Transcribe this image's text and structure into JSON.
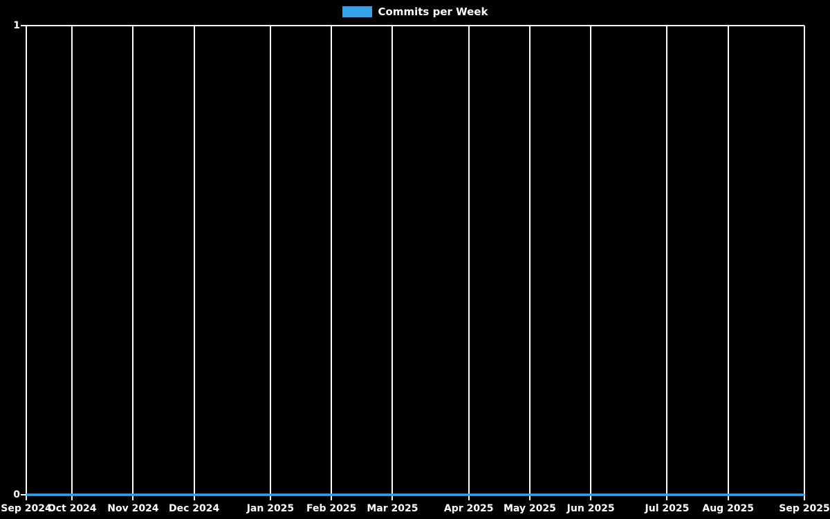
{
  "chart_data": {
    "type": "line",
    "title": "Commits per Week",
    "legend": {
      "position": "top",
      "items": [
        {
          "label": "Commits per Week",
          "color": "#36a2eb"
        }
      ]
    },
    "x_unit": "week",
    "x_range": [
      "Sep 2024",
      "Sep 2025"
    ],
    "n_points": 52,
    "values": [
      0,
      0,
      0,
      0,
      0,
      0,
      0,
      0,
      0,
      0,
      0,
      0,
      0,
      0,
      0,
      0,
      0,
      0,
      0,
      0,
      0,
      0,
      0,
      0,
      0,
      0,
      0,
      0,
      0,
      0,
      0,
      0,
      0,
      0,
      0,
      0,
      0,
      0,
      0,
      0,
      0,
      0,
      0,
      0,
      0,
      0,
      0,
      0,
      0,
      0,
      0,
      0
    ],
    "total_weeks": 51,
    "x_ticks": [
      {
        "label": "Sep 2024",
        "week": 0
      },
      {
        "label": "Oct 2024",
        "week": 3
      },
      {
        "label": "Nov 2024",
        "week": 7
      },
      {
        "label": "Dec 2024",
        "week": 11
      },
      {
        "label": "Jan 2025",
        "week": 16
      },
      {
        "label": "Feb 2025",
        "week": 20
      },
      {
        "label": "Mar 2025",
        "week": 24
      },
      {
        "label": "Apr 2025",
        "week": 29
      },
      {
        "label": "May 2025",
        "week": 33
      },
      {
        "label": "Jun 2025",
        "week": 37
      },
      {
        "label": "Jul 2025",
        "week": 42
      },
      {
        "label": "Aug 2025",
        "week": 46
      },
      {
        "label": "Sep 2025",
        "week": 51
      }
    ],
    "y_ticks": [
      {
        "label": "0",
        "value": 0
      },
      {
        "label": "1",
        "value": 1
      }
    ],
    "ylim": [
      0,
      1
    ],
    "xlabel": "",
    "ylabel": "",
    "grid": {
      "vertical": true,
      "horizontal": false
    },
    "colors": {
      "line": "#36a2eb",
      "grid": "#ffffff",
      "text": "#ffffff",
      "background": "#000000"
    }
  }
}
